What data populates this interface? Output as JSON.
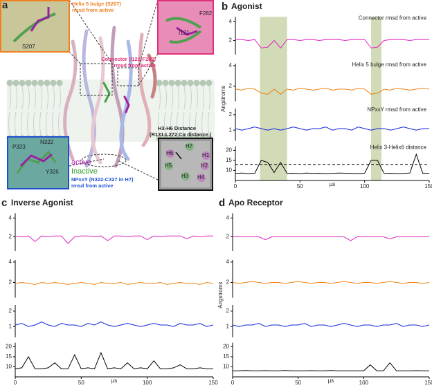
{
  "panel_a": {
    "letter": "a",
    "helix5_label": [
      "Helix 5 bulge (S207)",
      "rmsd from active"
    ],
    "helix5_residue": "S207",
    "connector_label": [
      "Connector (I121-F282)",
      "rmsd from active"
    ],
    "connector_residues": [
      "F282",
      "I121"
    ],
    "npxxy_residues": [
      "P323",
      "N322",
      "Y326"
    ],
    "legend": [
      "active",
      "Inactive"
    ],
    "npxxy_label": [
      "NPxxY (N322-C327 in H7)",
      "rmsd from active"
    ],
    "distance_label": [
      "H3-H6 Distance",
      "(R131-L272 Cα distance )"
    ],
    "helix_names": [
      "H6",
      "H7",
      "H1",
      "H5",
      "H2",
      "H3",
      "H4"
    ]
  },
  "chart_data": [
    {
      "type": "line",
      "letter": "b",
      "title": "Agonist",
      "ylabel": "Angstroms",
      "xlabel": "µs",
      "xlim": [
        0,
        150
      ],
      "xticks": [
        0,
        50,
        100,
        150
      ],
      "highlights": [
        [
          19,
          40
        ],
        [
          105,
          113
        ]
      ],
      "x": [
        0,
        5,
        10,
        15,
        20,
        25,
        30,
        35,
        40,
        45,
        50,
        55,
        60,
        65,
        70,
        75,
        80,
        85,
        90,
        95,
        100,
        105,
        110,
        115,
        120,
        125,
        130,
        135,
        140,
        145,
        150
      ],
      "series": [
        {
          "name": "Connector rmsd from active",
          "color": "#e020c0",
          "ylim": [
            0.5,
            4.5
          ],
          "yticks": [
            2,
            4
          ],
          "values": [
            2.1,
            2.1,
            2.0,
            2.1,
            1.2,
            1.3,
            2.0,
            1.2,
            2.1,
            2.1,
            2.0,
            2.1,
            2.1,
            2.0,
            2.1,
            2.1,
            2.1,
            2.0,
            2.1,
            2.1,
            2.1,
            1.2,
            1.3,
            2.0,
            2.1,
            2.1,
            2.1,
            2.0,
            2.1,
            2.1,
            2.1
          ]
        },
        {
          "name": "Helix 5 bulge rmsd from active",
          "color": "#f08010",
          "ylim": [
            0.5,
            4.2
          ],
          "yticks": [
            2,
            4
          ],
          "values": [
            1.7,
            1.6,
            1.8,
            1.7,
            1.3,
            1.2,
            1.7,
            1.2,
            1.7,
            1.6,
            1.8,
            1.7,
            1.6,
            1.7,
            1.8,
            1.6,
            1.7,
            1.7,
            1.6,
            1.8,
            1.7,
            1.2,
            1.3,
            1.7,
            1.6,
            1.8,
            1.7,
            1.6,
            1.7,
            1.8,
            1.7
          ]
        },
        {
          "name": "NPxxY rmsd from active",
          "color": "#1020e0",
          "ylim": [
            0.3,
            2.4
          ],
          "yticks": [
            1,
            2
          ],
          "values": [
            1.1,
            1.0,
            1.1,
            1.2,
            1.1,
            1.0,
            1.1,
            1.0,
            1.1,
            1.2,
            1.1,
            1.0,
            1.1,
            1.1,
            1.2,
            1.0,
            1.1,
            1.1,
            1.0,
            1.2,
            1.1,
            1.0,
            1.1,
            1.1,
            1.0,
            1.1,
            1.2,
            1.1,
            1.0,
            1.1,
            1.1
          ]
        },
        {
          "name": "Helix 3-Helix6 distance",
          "color": "#000000",
          "ylim": [
            5,
            22
          ],
          "yticks": [
            10,
            15,
            20
          ],
          "reference_line": 13,
          "values": [
            8.5,
            8.7,
            8.4,
            8.6,
            15,
            14,
            9,
            14,
            8.5,
            8.6,
            8.4,
            8.7,
            8.5,
            8.6,
            8.4,
            8.5,
            8.7,
            8.6,
            8.5,
            8.4,
            8.6,
            15,
            15,
            8.5,
            8.6,
            8.4,
            8.5,
            8.7,
            18,
            8.5,
            8.6
          ]
        }
      ]
    },
    {
      "type": "line",
      "letter": "c",
      "title": "Inverse Agonist",
      "xlabel": "µs",
      "xlim": [
        0,
        150
      ],
      "xticks": [
        0,
        50,
        100,
        150
      ],
      "x": [
        0,
        5,
        10,
        15,
        20,
        25,
        30,
        35,
        40,
        45,
        50,
        55,
        60,
        65,
        70,
        75,
        80,
        85,
        90,
        95,
        100,
        105,
        110,
        115,
        120,
        125,
        130,
        135,
        140,
        145,
        150
      ],
      "series": [
        {
          "color": "#e020c0",
          "ylim": [
            0.5,
            4.5
          ],
          "yticks": [
            2,
            4
          ],
          "values": [
            2.1,
            2.0,
            2.1,
            1.5,
            2.1,
            2.0,
            2.1,
            2.1,
            1.3,
            2.0,
            2.1,
            2.1,
            2.0,
            2.1,
            1.6,
            2.1,
            2.1,
            2.0,
            2.1,
            2.1,
            1.7,
            2.1,
            2.0,
            2.1,
            2.1,
            2.1,
            1.8,
            2.1,
            2.0,
            2.1,
            2.1
          ]
        },
        {
          "color": "#f08010",
          "ylim": [
            0.5,
            4.2
          ],
          "yticks": [
            2,
            4
          ],
          "values": [
            1.9,
            2.0,
            1.9,
            1.8,
            2.0,
            1.9,
            2.0,
            1.9,
            1.8,
            1.9,
            2.0,
            1.9,
            1.8,
            2.0,
            1.9,
            1.9,
            2.0,
            1.8,
            1.9,
            2.0,
            1.9,
            1.9,
            2.0,
            1.8,
            1.9,
            2.0,
            1.9,
            1.9,
            1.8,
            2.0,
            1.9
          ]
        },
        {
          "color": "#1020e0",
          "ylim": [
            0.3,
            2.4
          ],
          "yticks": [
            1,
            2
          ],
          "values": [
            1.1,
            1.2,
            1.0,
            1.1,
            1.3,
            1.1,
            1.0,
            1.2,
            1.1,
            1.1,
            1.0,
            1.2,
            1.1,
            1.3,
            1.1,
            1.0,
            1.1,
            1.2,
            1.1,
            1.0,
            1.1,
            1.2,
            1.1,
            1.1,
            1.0,
            1.2,
            1.1,
            1.1,
            1.2,
            1.0,
            1.1
          ]
        },
        {
          "color": "#000000",
          "ylim": [
            5,
            22
          ],
          "yticks": [
            10,
            15,
            20
          ],
          "values": [
            9,
            9.5,
            15,
            9,
            9,
            9.5,
            12,
            9,
            9,
            16,
            9,
            9.5,
            9,
            17,
            9,
            9.5,
            9,
            12,
            9,
            9.5,
            9,
            13,
            9,
            9,
            9.5,
            11,
            9,
            9,
            9.5,
            9,
            9
          ]
        }
      ]
    },
    {
      "type": "line",
      "letter": "d",
      "title": "Apo Receptor",
      "ylabel": "Angstroms",
      "xlabel": "µs",
      "xlim": [
        0,
        150
      ],
      "xticks": [
        0,
        50,
        100,
        150
      ],
      "x": [
        0,
        5,
        10,
        15,
        20,
        25,
        30,
        35,
        40,
        45,
        50,
        55,
        60,
        65,
        70,
        75,
        80,
        85,
        90,
        95,
        100,
        105,
        110,
        115,
        120,
        125,
        130,
        135,
        140,
        145,
        150
      ],
      "series": [
        {
          "color": "#e020c0",
          "ylim": [
            0.5,
            4.5
          ],
          "yticks": [
            2,
            4
          ],
          "values": [
            2.0,
            2.0,
            2.0,
            2.0,
            2.0,
            1.7,
            2.0,
            2.0,
            2.0,
            2.0,
            2.0,
            2.0,
            2.0,
            2.0,
            2.0,
            2.0,
            2.0,
            2.0,
            1.6,
            2.0,
            2.0,
            2.0,
            2.0,
            2.0,
            1.8,
            2.0,
            2.0,
            2.0,
            2.0,
            2.0,
            2.0
          ]
        },
        {
          "color": "#f08010",
          "ylim": [
            0.5,
            4.2
          ],
          "yticks": [
            2,
            4
          ],
          "values": [
            2.0,
            1.9,
            2.0,
            2.1,
            2.0,
            1.9,
            2.0,
            2.0,
            1.9,
            2.0,
            2.1,
            2.0,
            1.9,
            2.0,
            2.0,
            1.9,
            2.0,
            2.1,
            2.0,
            1.9,
            2.0,
            2.0,
            1.9,
            2.0,
            2.1,
            2.0,
            1.9,
            2.0,
            2.0,
            1.9,
            2.0
          ]
        },
        {
          "color": "#1020e0",
          "ylim": [
            0.3,
            2.4
          ],
          "yticks": [
            1,
            2
          ],
          "values": [
            1.1,
            1.0,
            1.1,
            1.1,
            1.2,
            1.0,
            1.1,
            1.1,
            1.0,
            1.1,
            1.1,
            1.2,
            1.0,
            1.1,
            1.1,
            1.0,
            1.1,
            1.2,
            1.1,
            1.0,
            1.1,
            1.1,
            1.0,
            1.1,
            1.1,
            1.2,
            1.0,
            1.1,
            1.1,
            1.0,
            1.1
          ]
        },
        {
          "color": "#000000",
          "ylim": [
            5,
            22
          ],
          "yticks": [
            10,
            15,
            20
          ],
          "values": [
            8,
            8,
            8.2,
            8,
            8,
            8.1,
            8,
            8,
            8.2,
            8,
            8,
            8,
            8.1,
            8,
            8,
            8.2,
            8,
            8,
            8,
            8,
            8,
            11,
            8,
            8,
            12,
            8,
            8,
            8,
            8.1,
            8,
            8
          ]
        }
      ]
    }
  ]
}
